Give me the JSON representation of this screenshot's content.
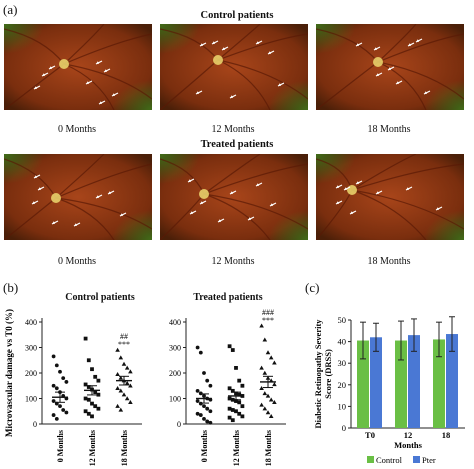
{
  "panels": {
    "a": {
      "label": "(a)"
    },
    "b": {
      "label": "(b)"
    },
    "c": {
      "label": "(c)"
    }
  },
  "retina": {
    "control_title": "Control patients",
    "treated_title": "Treated patients",
    "captions": [
      "0 Months",
      "12 Months",
      "18 Months"
    ],
    "colors": {
      "fundus_dark": "#4a1f08",
      "fundus_mid": "#a8451a",
      "fundus_green": "#3f7a1c",
      "arrow": "#ffffff"
    }
  },
  "chart_data": [
    {
      "type": "scatter",
      "title": "Control patients",
      "ylabel": "Microvascular damage vs T0 (%)",
      "categories": [
        "0 Months",
        "12 Months",
        "18 Months"
      ],
      "ylim": [
        0,
        400
      ],
      "yticks": [
        0,
        100,
        200,
        300,
        400
      ],
      "markers": [
        "circle",
        "square",
        "triangle"
      ],
      "annotations": [
        {
          "category": "18 Months",
          "lines": [
            "##",
            "***"
          ]
        }
      ],
      "points": [
        [
          265,
          230,
          205,
          180,
          165,
          150,
          140,
          125,
          110,
          100,
          90,
          80,
          70,
          55,
          45,
          35,
          20
        ],
        [
          335,
          250,
          215,
          185,
          170,
          155,
          145,
          135,
          125,
          115,
          100,
          95,
          80,
          70,
          60,
          50,
          40,
          30
        ],
        [
          290,
          260,
          235,
          220,
          205,
          195,
          180,
          170,
          160,
          150,
          140,
          130,
          115,
          100,
          85,
          70,
          55
        ]
      ],
      "mean": [
        105,
        132,
        170
      ],
      "sem": [
        20,
        18,
        17
      ]
    },
    {
      "type": "scatter",
      "title": "Treated patients",
      "ylabel": "",
      "categories": [
        "0 Months",
        "12 Months",
        "18 Months"
      ],
      "ylim": [
        0,
        400
      ],
      "yticks": [
        0,
        100,
        200,
        300,
        400
      ],
      "markers": [
        "circle",
        "square",
        "triangle"
      ],
      "annotations": [
        {
          "category": "18 Months",
          "lines": [
            "###",
            "***"
          ]
        }
      ],
      "points": [
        [
          300,
          280,
          200,
          170,
          150,
          130,
          120,
          110,
          100,
          95,
          90,
          80,
          70,
          60,
          50,
          40,
          35,
          20,
          10,
          5
        ],
        [
          305,
          290,
          220,
          170,
          150,
          140,
          130,
          120,
          115,
          110,
          100,
          95,
          90,
          85,
          70,
          60,
          55,
          50,
          40,
          30,
          25,
          15
        ],
        [
          385,
          330,
          280,
          260,
          240,
          220,
          200,
          180,
          170,
          155,
          140,
          120,
          110,
          95,
          85,
          75,
          60,
          45,
          30
        ]
      ],
      "mean": [
        100,
        110,
        165
      ],
      "sem": [
        18,
        15,
        22
      ]
    },
    {
      "type": "bar",
      "title": "",
      "ylabel": "Diabetic Retinopathy Severity Score (DRSS)",
      "xlabel": "Months",
      "categories": [
        "T0",
        "12",
        "18"
      ],
      "ylim": [
        0,
        50
      ],
      "yticks": [
        0,
        10,
        20,
        30,
        40,
        50
      ],
      "series": [
        {
          "name": "Control",
          "color": "#6abf45",
          "values": [
            40.5,
            40.5,
            41
          ],
          "err": [
            8.5,
            9,
            8
          ]
        },
        {
          "name": "Pter",
          "color": "#4a78d4",
          "values": [
            42,
            43,
            43.5
          ],
          "err": [
            6.5,
            7.5,
            8
          ]
        }
      ],
      "legend": "bottom"
    }
  ]
}
